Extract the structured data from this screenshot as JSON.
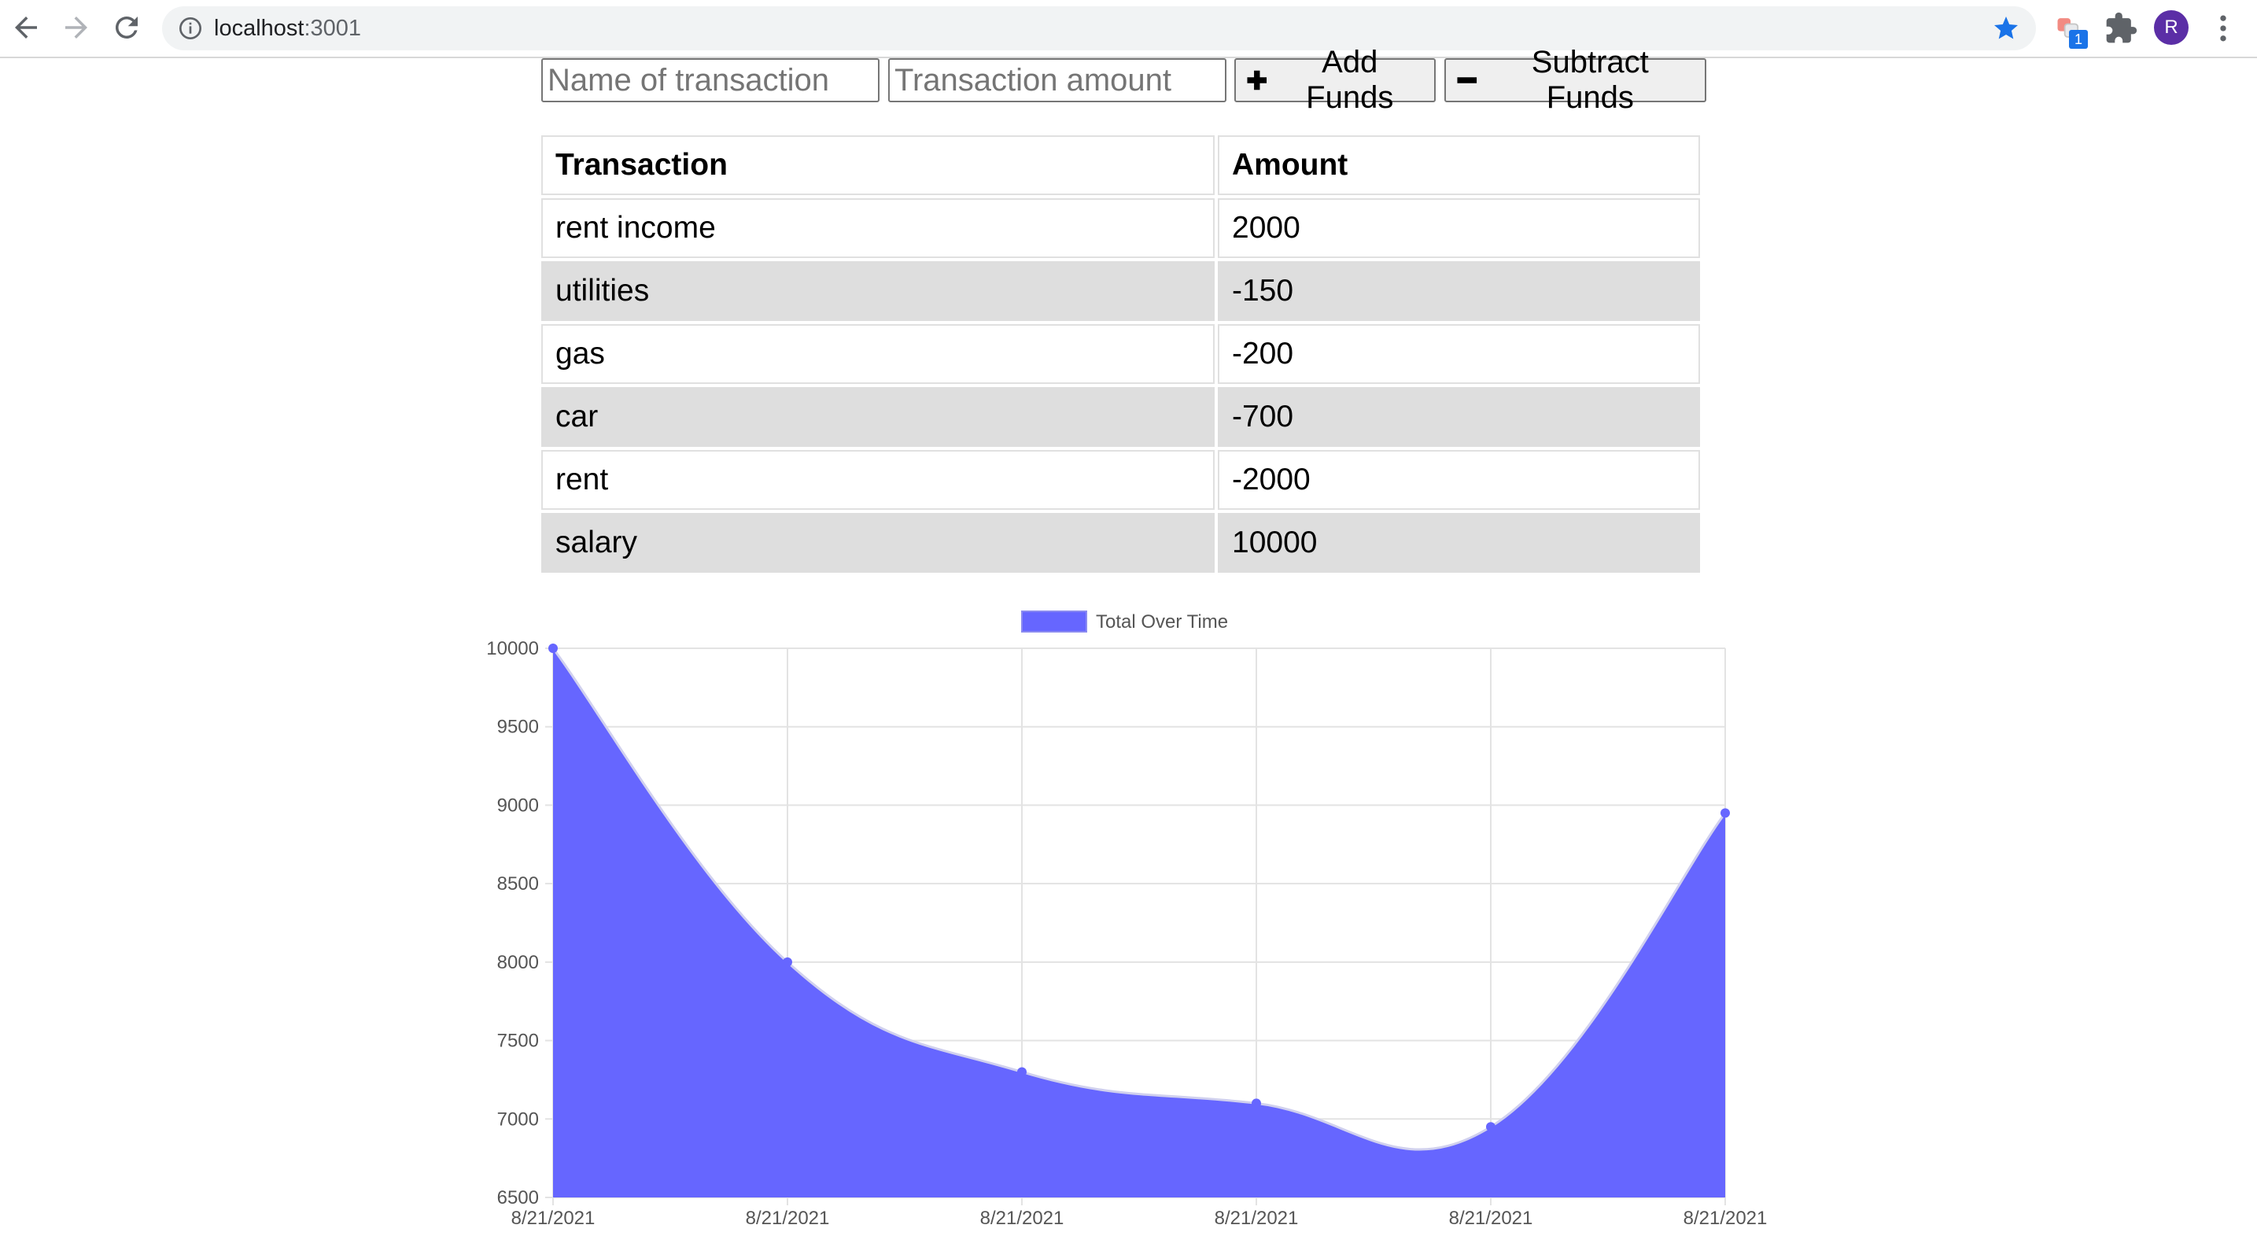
{
  "browser": {
    "url_host": "localhost",
    "url_port": ":3001",
    "extension_badge": "1",
    "profile_initial": "R",
    "star_color": "#1a73e8"
  },
  "form": {
    "name_placeholder": "Name of transaction",
    "amount_placeholder": "Transaction amount",
    "add_label": "Add Funds",
    "subtract_label": "Subtract Funds"
  },
  "table": {
    "headers": [
      "Transaction",
      "Amount"
    ],
    "rows": [
      {
        "name": "rent income",
        "amount": "2000"
      },
      {
        "name": "utilities",
        "amount": "-150"
      },
      {
        "name": "gas",
        "amount": "-200"
      },
      {
        "name": "car",
        "amount": "-700"
      },
      {
        "name": "rent",
        "amount": "-2000"
      },
      {
        "name": "salary",
        "amount": "10000"
      }
    ]
  },
  "chart_data": {
    "type": "area",
    "series": [
      {
        "name": "Total Over Time",
        "color": "#6666ff",
        "values": [
          10000,
          8000,
          7300,
          7100,
          6950,
          8950
        ]
      }
    ],
    "categories": [
      "8/21/2021",
      "8/21/2021",
      "8/21/2021",
      "8/21/2021",
      "8/21/2021",
      "8/21/2021"
    ],
    "y_ticks": [
      10000,
      9500,
      9000,
      8500,
      8000,
      7500,
      7000,
      6500
    ],
    "ylim": [
      6500,
      10000
    ],
    "grid": true,
    "legend_position": "top"
  }
}
